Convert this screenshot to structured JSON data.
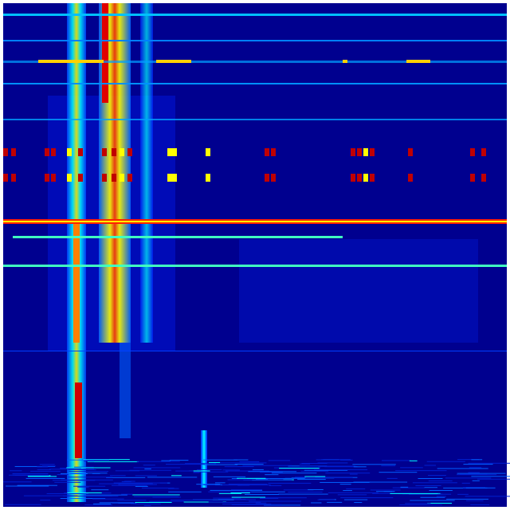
{
  "colors": {
    "background": "#00008f",
    "low": "#0000ff",
    "mid": "#00ffff",
    "high": "#ffff00",
    "peak": "#ff0000",
    "max": "#800000"
  }
}
